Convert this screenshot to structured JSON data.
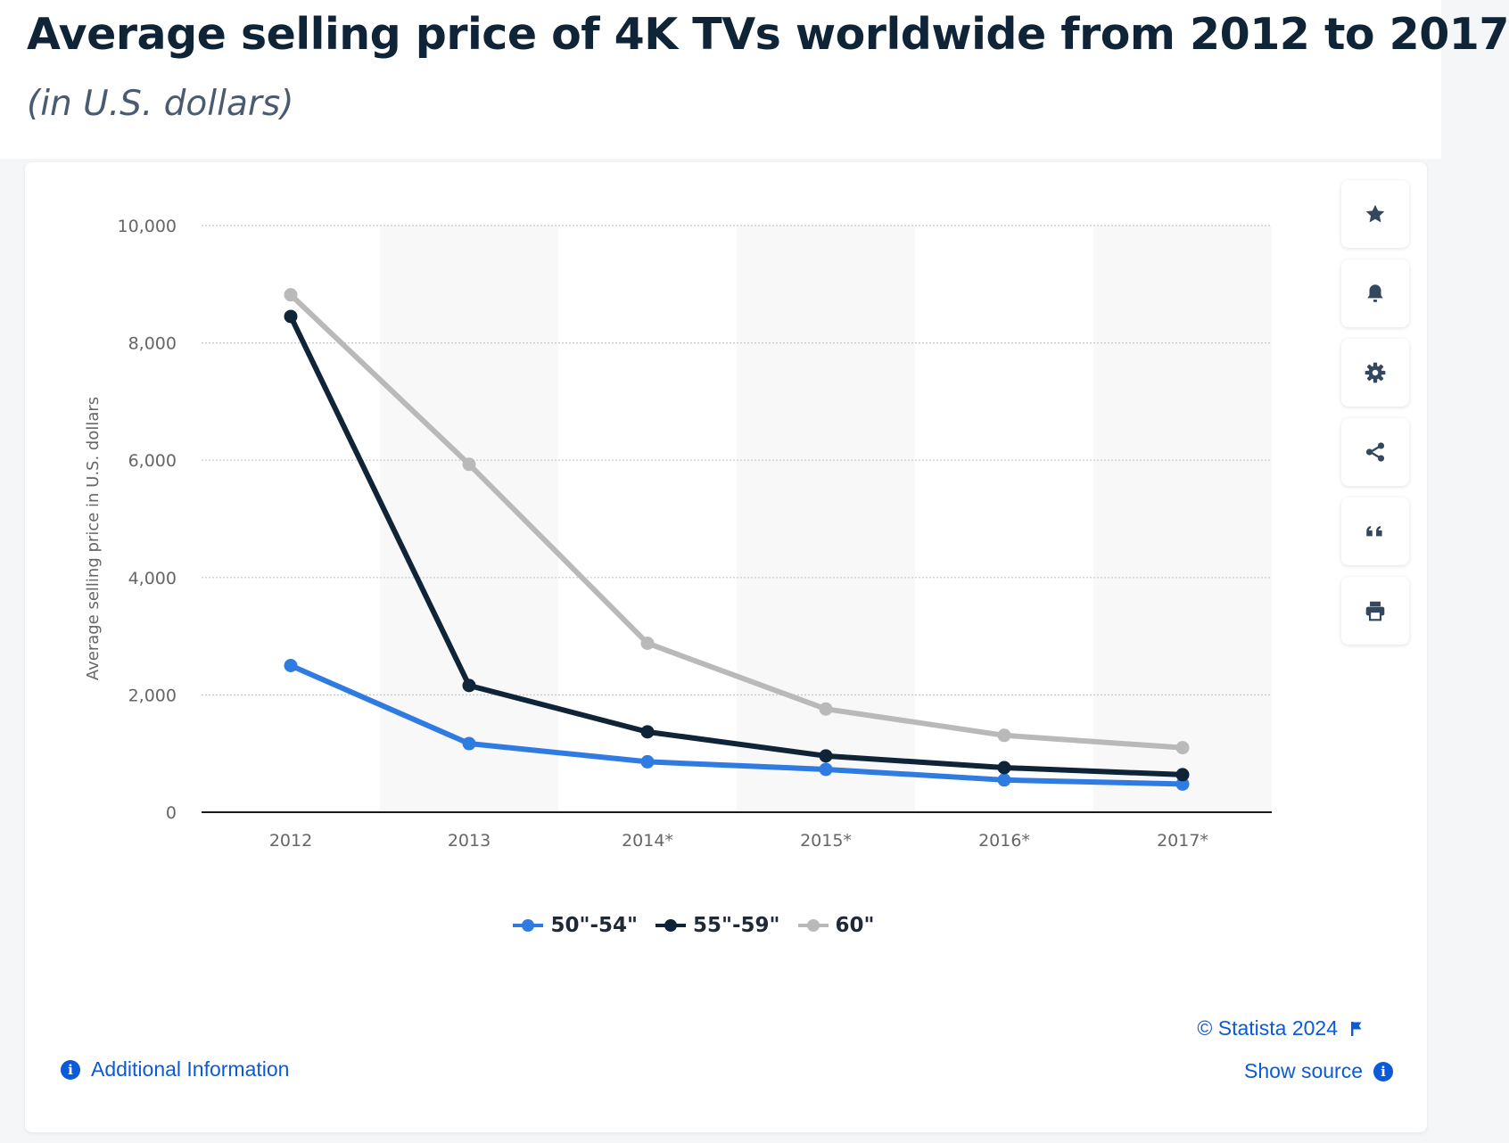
{
  "header": {
    "title": "Average selling price of 4K TVs worldwide from 2012 to 2017",
    "subtitle": "(in U.S. dollars)"
  },
  "toolbar": {
    "buttons": [
      {
        "icon": "star-icon",
        "name": "favorite-button"
      },
      {
        "icon": "bell-icon",
        "name": "notification-button"
      },
      {
        "icon": "gear-icon",
        "name": "settings-button"
      },
      {
        "icon": "share-icon",
        "name": "share-button"
      },
      {
        "icon": "quote-icon",
        "name": "cite-button"
      },
      {
        "icon": "print-icon",
        "name": "print-button"
      }
    ]
  },
  "colors": {
    "series_50_54": "#2f7be2",
    "series_55_59": "#0f2437",
    "series_60": "#b9b9b9",
    "link": "#0b5ad8"
  },
  "chart_data": {
    "type": "line",
    "categories": [
      "2012",
      "2013",
      "2014*",
      "2015*",
      "2016*",
      "2017*"
    ],
    "ylabel": "Average selling price in U.S. dollars",
    "xlabel": "",
    "ylim": [
      0,
      10000
    ],
    "yticks": [
      "0",
      "2,000",
      "4,000",
      "6,000",
      "8,000",
      "10,000"
    ],
    "ytick_values": [
      0,
      2000,
      4000,
      6000,
      8000,
      10000
    ],
    "grid": true,
    "legend_position": "bottom",
    "series": [
      {
        "name": "50\"-54\"",
        "color": "#2f7be2",
        "values": [
          2500,
          1170,
          860,
          730,
          550,
          480
        ]
      },
      {
        "name": "55\"-59\"",
        "color": "#0f2437",
        "values": [
          8450,
          2160,
          1370,
          960,
          760,
          640
        ]
      },
      {
        "name": "60\"",
        "color": "#b9b9b9",
        "values": [
          8820,
          5930,
          2880,
          1760,
          1310,
          1100
        ]
      }
    ]
  },
  "footer": {
    "credit": "© Statista 2024",
    "show_source": "Show source",
    "additional_info": "Additional Information"
  }
}
